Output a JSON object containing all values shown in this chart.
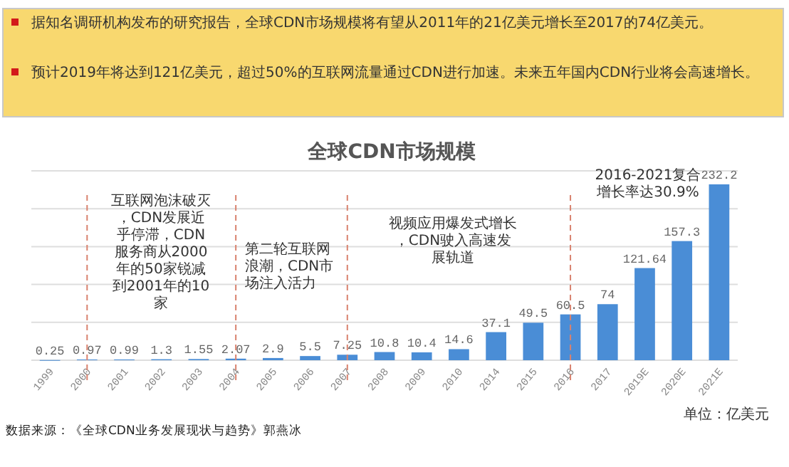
{
  "chart_data": {
    "type": "bar",
    "title": "全球CDN市场规模",
    "categories": [
      "1999",
      "2000",
      "2001",
      "2002",
      "2003",
      "2004",
      "2005",
      "2006",
      "2007",
      "2008",
      "2009",
      "2010",
      "2014",
      "2015",
      "2016",
      "2017",
      "2019E",
      "2020E",
      "2021E"
    ],
    "values": [
      0.25,
      0.97,
      0.99,
      1.3,
      1.55,
      2.07,
      2.9,
      5.5,
      7.25,
      10.8,
      10.4,
      14.6,
      37.1,
      49.5,
      60.5,
      74,
      121.64,
      157.3,
      232.2
    ],
    "color": "#4a8dd6",
    "data_labels": true,
    "grid": "y",
    "ylim": [
      0,
      250
    ],
    "yticks": [
      {
        "value": 0,
        "label": null
      },
      {
        "value": 50,
        "label": null
      },
      {
        "value": 100,
        "label": null
      },
      {
        "value": 150,
        "label": null
      },
      {
        "value": 200,
        "label": null
      },
      {
        "value": 250,
        "label": null
      }
    ],
    "tick_labels": "x",
    "ref_lines": [
      {
        "axis": "x",
        "value": "2000",
        "color": "#d9826e",
        "line_style": "dashed"
      },
      {
        "axis": "x",
        "value": "2004",
        "color": "#d9826e",
        "line_style": "dashed"
      },
      {
        "axis": "x",
        "value": "2007",
        "color": "#d9826e",
        "line_style": "dashed"
      },
      {
        "axis": "x",
        "value": "2016",
        "color": "#d9826e",
        "line_style": "dashed"
      }
    ],
    "annotations": [
      "据知名调研机构发布的研究报告，全球CDN市场规模将有望从2011年的21亿美元增长至2017的74亿美元。",
      "预计2019年将达到121亿美元，超过50%的互联网流量通过CDN进行加速。未来五年国内CDN行业将会高速增长。",
      "互联网泡沫破灭，CDN发展近乎停滞，CDN服务商从2000年的50家锐减到2001年的10家",
      "第二轮互联网浪潮，CDN市场注入活力",
      "视频应用爆发式增长，CDN驶入高速发展轨道",
      "2016-2021复合增长率达30.9%",
      "单位：亿美元",
      "数据来源：《全球CDN业务发展现状与趋势》郭燕冰"
    ]
  }
}
